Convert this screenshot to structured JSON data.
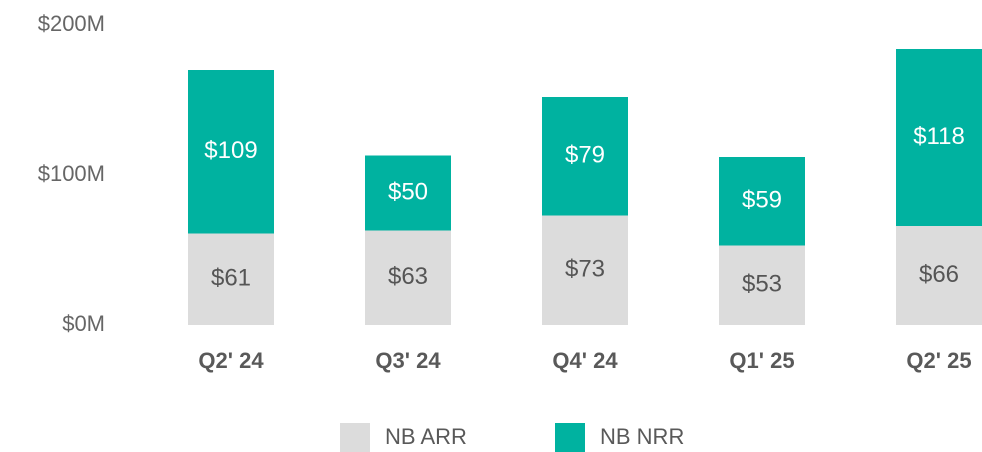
{
  "chart_data": {
    "type": "stacked_bar",
    "categories": [
      "Q2' 24",
      "Q3' 24",
      "Q4' 24",
      "Q1' 25",
      "Q2' 25"
    ],
    "series": [
      {
        "name": "NB ARR",
        "color": "#dcdcdc",
        "values": [
          61,
          63,
          73,
          53,
          66
        ],
        "value_labels": [
          "$61",
          "$63",
          "$73",
          "$53",
          "$66"
        ]
      },
      {
        "name": "NB NRR",
        "color": "#00b2a0",
        "values": [
          109,
          50,
          79,
          59,
          118
        ],
        "value_labels": [
          "$109",
          "$50",
          "$79",
          "$59",
          "$118"
        ]
      }
    ],
    "ylim": [
      0,
      200
    ],
    "yticks": [
      {
        "value": 0,
        "label": "$0M"
      },
      {
        "value": 100,
        "label": "$100M"
      },
      {
        "value": 200,
        "label": "$200M"
      }
    ],
    "legend": "bottom"
  }
}
